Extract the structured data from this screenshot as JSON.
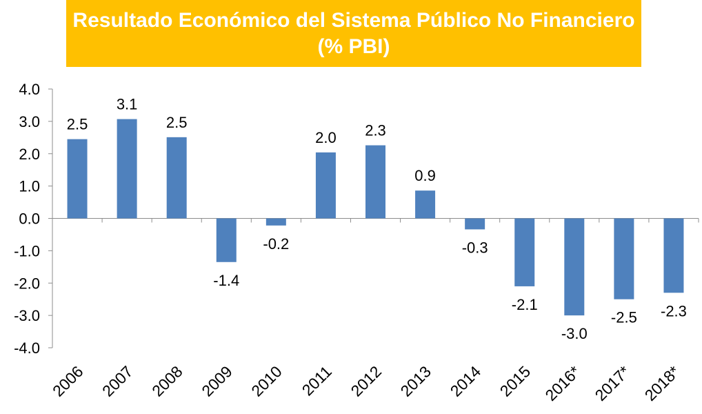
{
  "title": {
    "line1": "Resultado Económico del Sistema Público No Financiero",
    "line2": "(% PBI)"
  },
  "colors": {
    "title_background": "#ffc000",
    "title_text": "#ffffff",
    "bar": "#4f81bd",
    "axis": "#8c8c8c"
  },
  "chart_data": {
    "type": "bar",
    "categories": [
      "2006",
      "2007",
      "2008",
      "2009",
      "2010",
      "2011",
      "2012",
      "2013",
      "2014",
      "2015",
      "2016*",
      "2017*",
      "2018*"
    ],
    "values": [
      2.45,
      3.07,
      2.51,
      -1.35,
      -0.22,
      2.04,
      2.26,
      0.86,
      -0.34,
      -2.1,
      -3.0,
      -2.5,
      -2.3
    ],
    "data_labels": [
      "2.5",
      "3.1",
      "2.5",
      "-1.4",
      "-0.2",
      "2.0",
      "2.3",
      "0.9",
      "-0.3",
      "-2.1",
      "-3.0",
      "-2.5",
      "-2.3"
    ],
    "y_ticks": [
      "4.0",
      "3.0",
      "2.0",
      "1.0",
      "0.0",
      "-1.0",
      "-2.0",
      "-3.0",
      "-4.0"
    ],
    "ylim": [
      -4,
      4
    ],
    "grid": false,
    "legend": "none"
  }
}
